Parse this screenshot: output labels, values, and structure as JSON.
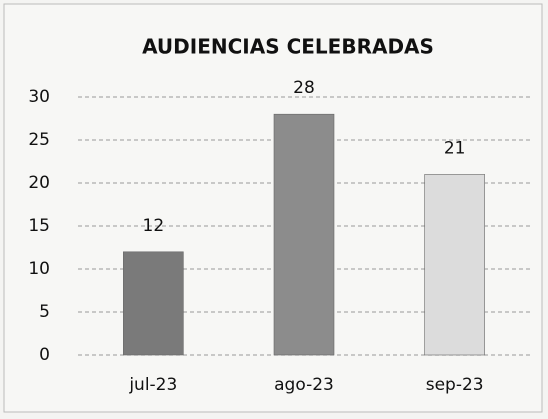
{
  "chart_data": {
    "type": "bar",
    "title": "AUDIENCIAS CELEBRADAS",
    "categories": [
      "jul-23",
      "ago-23",
      "sep-23"
    ],
    "values": [
      12,
      28,
      21
    ],
    "colors": [
      "#7a7a7a",
      "#8c8c8c",
      "#dcdcdc"
    ],
    "ylim": [
      0,
      30
    ],
    "yticks": [
      0,
      5,
      10,
      15,
      20,
      25,
      30
    ],
    "grid": true
  }
}
